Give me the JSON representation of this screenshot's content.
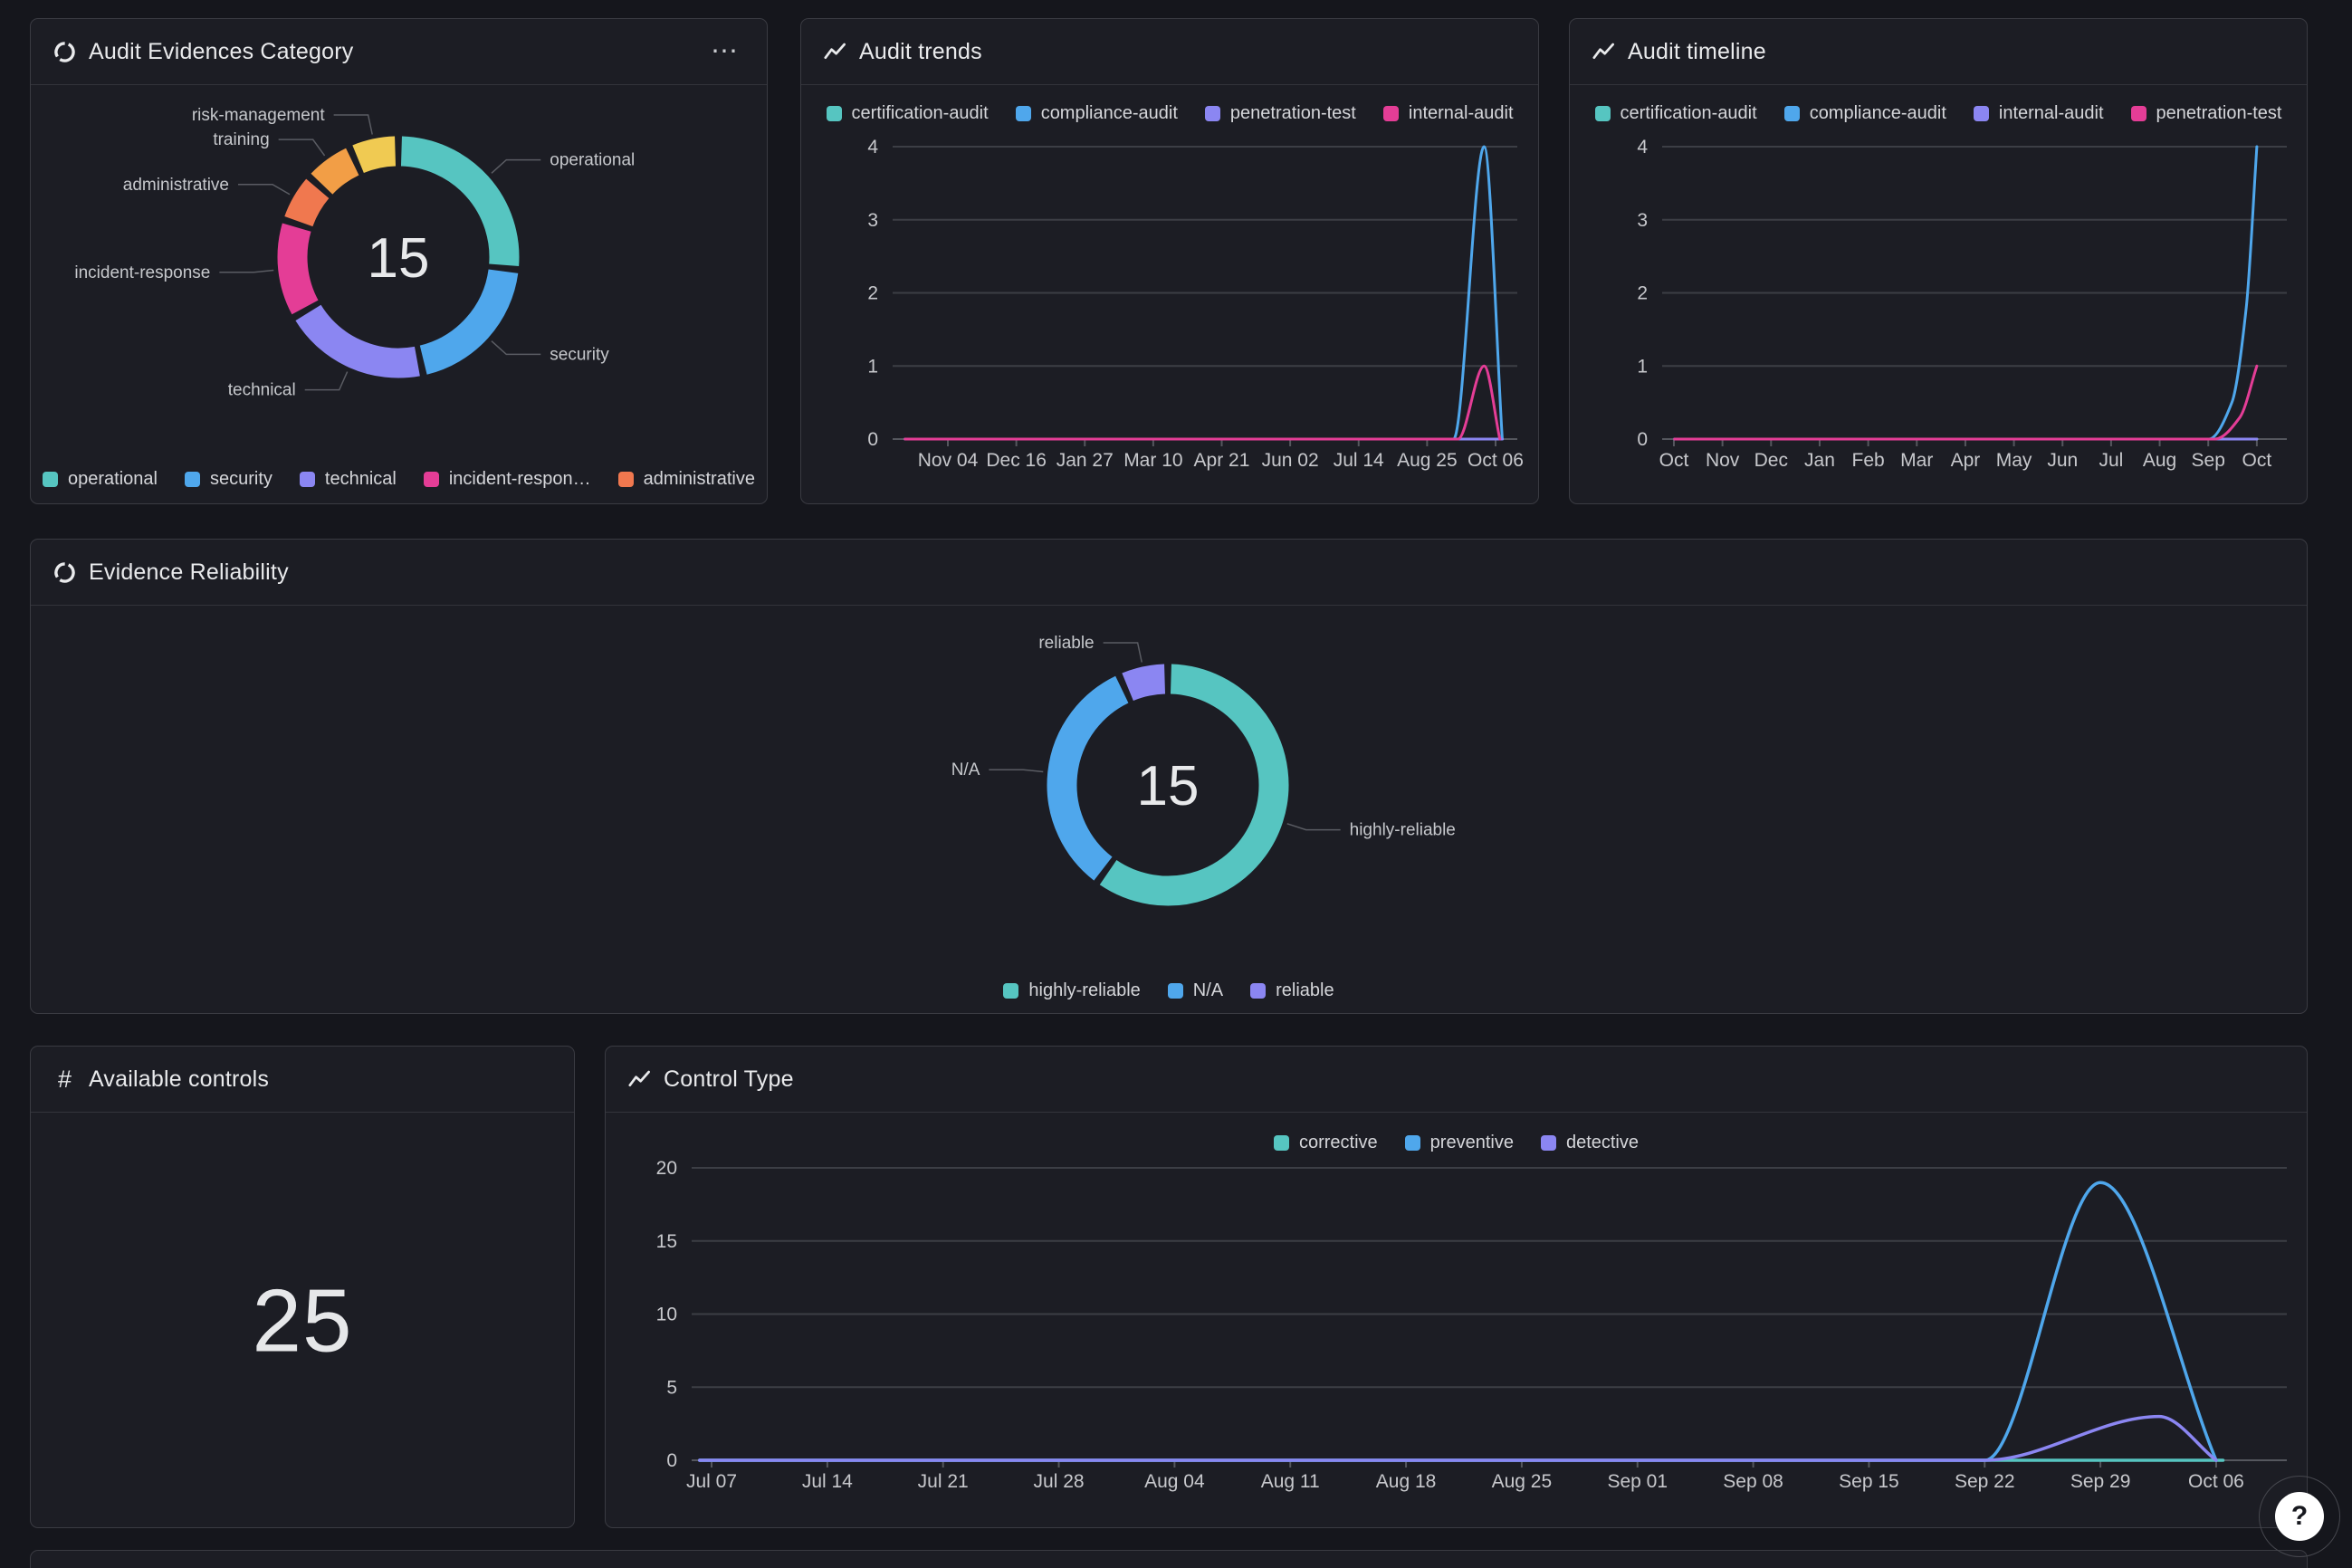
{
  "page": {
    "background": "#15161c",
    "panel_background": "#1c1d24"
  },
  "panels": {
    "audit_evidences_category": {
      "title": "Audit Evidences Category",
      "icon": "donut-chart-icon",
      "menu": "⋯",
      "legend": [
        {
          "label": "operational",
          "color": "#56c5c1"
        },
        {
          "label": "security",
          "color": "#4fa7ec"
        },
        {
          "label": "technical",
          "color": "#8b86f2"
        },
        {
          "label": "incident-respon…",
          "color": "#e43d96"
        },
        {
          "label": "administrative",
          "color": "#f0784f"
        }
      ]
    },
    "audit_trends": {
      "title": "Audit trends",
      "icon": "trend-line-icon",
      "legend": [
        {
          "label": "certification-audit",
          "color": "#56c5c1"
        },
        {
          "label": "compliance-audit",
          "color": "#4fa7ec"
        },
        {
          "label": "penetration-test",
          "color": "#8b86f2"
        },
        {
          "label": "internal-audit",
          "color": "#e43d96"
        }
      ]
    },
    "audit_timeline": {
      "title": "Audit timeline",
      "icon": "trend-line-icon",
      "legend": [
        {
          "label": "certification-audit",
          "color": "#56c5c1"
        },
        {
          "label": "compliance-audit",
          "color": "#4fa7ec"
        },
        {
          "label": "internal-audit",
          "color": "#8b86f2"
        },
        {
          "label": "penetration-test",
          "color": "#e43d96"
        }
      ]
    },
    "evidence_reliability": {
      "title": "Evidence Reliability",
      "icon": "donut-chart-icon",
      "legend": [
        {
          "label": "highly-reliable",
          "color": "#56c5c1"
        },
        {
          "label": "N/A",
          "color": "#4fa7ec"
        },
        {
          "label": "reliable",
          "color": "#8b86f2"
        }
      ]
    },
    "available_controls": {
      "title": "Available controls",
      "icon": "hash-icon",
      "value": "25"
    },
    "control_type": {
      "title": "Control Type",
      "icon": "trend-line-icon",
      "legend": [
        {
          "label": "corrective",
          "color": "#56c5c1"
        },
        {
          "label": "preventive",
          "color": "#4fa7ec"
        },
        {
          "label": "detective",
          "color": "#8b86f2"
        }
      ]
    }
  },
  "help_button": {
    "label": "?"
  },
  "chart_data": [
    {
      "id": "audit-evidences-category",
      "type": "pie",
      "title": "Audit Evidences Category",
      "total": 15,
      "center_label": "15",
      "segments": [
        {
          "label": "operational",
          "value": 4,
          "color": "#56c5c1"
        },
        {
          "label": "security",
          "value": 3,
          "color": "#4fa7ec"
        },
        {
          "label": "technical",
          "value": 3,
          "color": "#8b86f2"
        },
        {
          "label": "incident-response",
          "value": 2,
          "color": "#e43d96"
        },
        {
          "label": "administrative",
          "value": 1,
          "color": "#f0784f"
        },
        {
          "label": "training",
          "value": 1,
          "color": "#f29e46"
        },
        {
          "label": "risk-management",
          "value": 1,
          "color": "#f0ca52"
        }
      ]
    },
    {
      "id": "audit-trends",
      "type": "line",
      "title": "Audit trends",
      "ylim": [
        0,
        4
      ],
      "yticks": [
        0,
        1,
        2,
        3,
        4
      ],
      "xticks": [
        "Nov 04",
        "Dec 16",
        "Jan 27",
        "Mar 10",
        "Apr 21",
        "Jun 02",
        "Jul 14",
        "Aug 25",
        "Oct 06"
      ],
      "grid": true,
      "legend_position": "top",
      "series": [
        {
          "name": "certification-audit",
          "color": "#56c5c1",
          "points": [
            {
              "x": 0.02,
              "y": 0
            },
            {
              "x": 0.976,
              "y": 0
            }
          ]
        },
        {
          "name": "compliance-audit",
          "color": "#4fa7ec",
          "points": [
            {
              "x": 0.02,
              "y": 0
            },
            {
              "x": 0.898,
              "y": 0
            },
            {
              "x": 0.947,
              "y": 4
            },
            {
              "x": 0.976,
              "y": 0
            }
          ]
        },
        {
          "name": "penetration-test",
          "color": "#8b86f2",
          "points": [
            {
              "x": 0.02,
              "y": 0
            },
            {
              "x": 0.976,
              "y": 0
            }
          ]
        },
        {
          "name": "internal-audit",
          "color": "#e43d96",
          "points": [
            {
              "x": 0.02,
              "y": 0
            },
            {
              "x": 0.905,
              "y": 0
            },
            {
              "x": 0.947,
              "y": 1
            },
            {
              "x": 0.972,
              "y": 0
            }
          ]
        }
      ]
    },
    {
      "id": "audit-timeline",
      "type": "line",
      "title": "Audit timeline",
      "ylim": [
        0,
        4
      ],
      "yticks": [
        0,
        1,
        2,
        3,
        4
      ],
      "xticks": [
        "Oct",
        "Nov",
        "Dec",
        "Jan",
        "Feb",
        "Mar",
        "Apr",
        "May",
        "Jun",
        "Jul",
        "Aug",
        "Sep",
        "Oct"
      ],
      "grid": true,
      "legend_position": "top",
      "series": [
        {
          "name": "certification-audit",
          "color": "#56c5c1",
          "points": [
            {
              "x": 0.02,
              "y": 0
            },
            {
              "x": 0.952,
              "y": 0
            }
          ]
        },
        {
          "name": "compliance-audit",
          "color": "#4fa7ec",
          "points": [
            {
              "x": 0.02,
              "y": 0
            },
            {
              "x": 0.875,
              "y": 0
            },
            {
              "x": 0.912,
              "y": 0.5
            },
            {
              "x": 0.935,
              "y": 1.8
            },
            {
              "x": 0.952,
              "y": 4
            }
          ]
        },
        {
          "name": "internal-audit",
          "color": "#8b86f2",
          "points": [
            {
              "x": 0.02,
              "y": 0
            },
            {
              "x": 0.952,
              "y": 0
            }
          ]
        },
        {
          "name": "penetration-test",
          "color": "#e43d96",
          "points": [
            {
              "x": 0.02,
              "y": 0
            },
            {
              "x": 0.885,
              "y": 0
            },
            {
              "x": 0.925,
              "y": 0.3
            },
            {
              "x": 0.952,
              "y": 1
            }
          ]
        }
      ]
    },
    {
      "id": "evidence-reliability",
      "type": "pie",
      "title": "Evidence Reliability",
      "total": 15,
      "center_label": "15",
      "segments": [
        {
          "label": "highly-reliable",
          "value": 9,
          "color": "#56c5c1"
        },
        {
          "label": "N/A",
          "value": 5,
          "color": "#4fa7ec"
        },
        {
          "label": "reliable",
          "value": 1,
          "color": "#8b86f2"
        }
      ]
    },
    {
      "id": "available-controls",
      "type": "stat",
      "title": "Available controls",
      "value": 25
    },
    {
      "id": "control-type",
      "type": "line",
      "title": "Control Type",
      "ylim": [
        0,
        20
      ],
      "yticks": [
        0,
        5,
        10,
        15,
        20
      ],
      "xticks": [
        "Jul 07",
        "Jul 14",
        "Jul 21",
        "Jul 28",
        "Aug 04",
        "Aug 11",
        "Aug 18",
        "Aug 25",
        "Sep 01",
        "Sep 08",
        "Sep 15",
        "Sep 22",
        "Sep 29",
        "Oct 06"
      ],
      "grid": true,
      "legend_position": "top",
      "series": [
        {
          "name": "corrective",
          "color": "#56c5c1",
          "points": [
            {
              "x": 0.005,
              "y": 0
            },
            {
              "x": 0.96,
              "y": 0
            }
          ]
        },
        {
          "name": "preventive",
          "color": "#4fa7ec",
          "points": [
            {
              "x": 0.005,
              "y": 0
            },
            {
              "x": "Sep 22",
              "y": 0
            },
            {
              "x": "Sep 29",
              "y": 19
            },
            {
              "x": "Oct 06",
              "y": 0
            }
          ]
        },
        {
          "name": "detective",
          "color": "#8b86f2",
          "points": [
            {
              "x": 0.005,
              "y": 0
            },
            {
              "x": "Sep 22",
              "y": 0
            },
            {
              "x": 0.92,
              "y": 3
            },
            {
              "x": "Oct 06",
              "y": 0
            }
          ]
        }
      ]
    }
  ]
}
